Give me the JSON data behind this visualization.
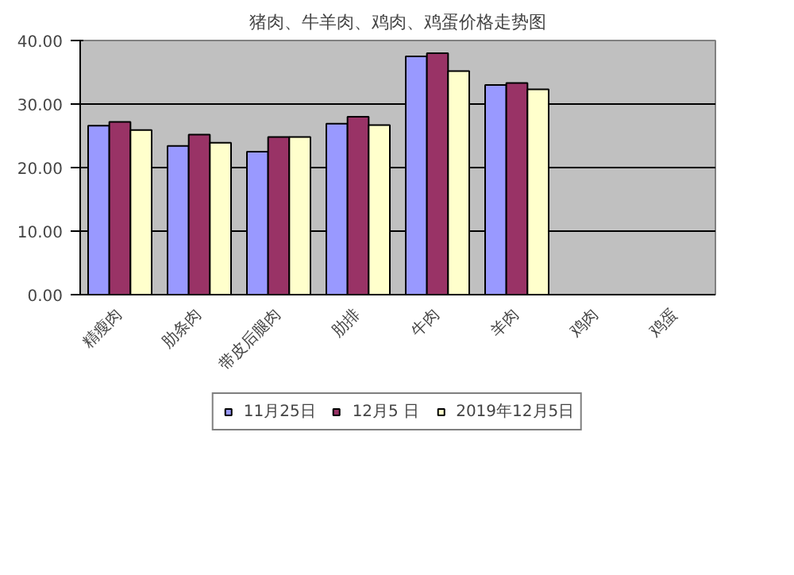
{
  "chart_data": {
    "type": "bar",
    "title": "猪肉、牛羊肉、鸡肉、鸡蛋价格走势图",
    "categories": [
      "精瘦肉",
      "肋条肉",
      "带皮后腿肉",
      "肋排",
      "牛肉",
      "羊肉",
      "鸡肉",
      "鸡蛋"
    ],
    "series": [
      {
        "name": "11月25日",
        "color": "#9999ff",
        "values": [
          26.6,
          23.4,
          22.5,
          26.9,
          37.5,
          33.0,
          null,
          null
        ]
      },
      {
        "name": "12月5 日",
        "color": "#993366",
        "values": [
          27.2,
          25.2,
          24.8,
          28.0,
          38.0,
          33.3,
          null,
          null
        ]
      },
      {
        "name": "2019年12月5日",
        "color": "#ffffcc",
        "values": [
          25.9,
          23.9,
          24.8,
          26.7,
          35.2,
          32.3,
          null,
          null
        ]
      }
    ],
    "ylim": [
      0,
      40
    ],
    "yticks": [
      {
        "value": 0,
        "label": "0.00"
      },
      {
        "value": 10,
        "label": "10.00"
      },
      {
        "value": 20,
        "label": "20.00"
      },
      {
        "value": 30,
        "label": "30.00"
      },
      {
        "value": 40,
        "label": "40.00"
      }
    ],
    "grid": "y",
    "legend": "bottom"
  }
}
